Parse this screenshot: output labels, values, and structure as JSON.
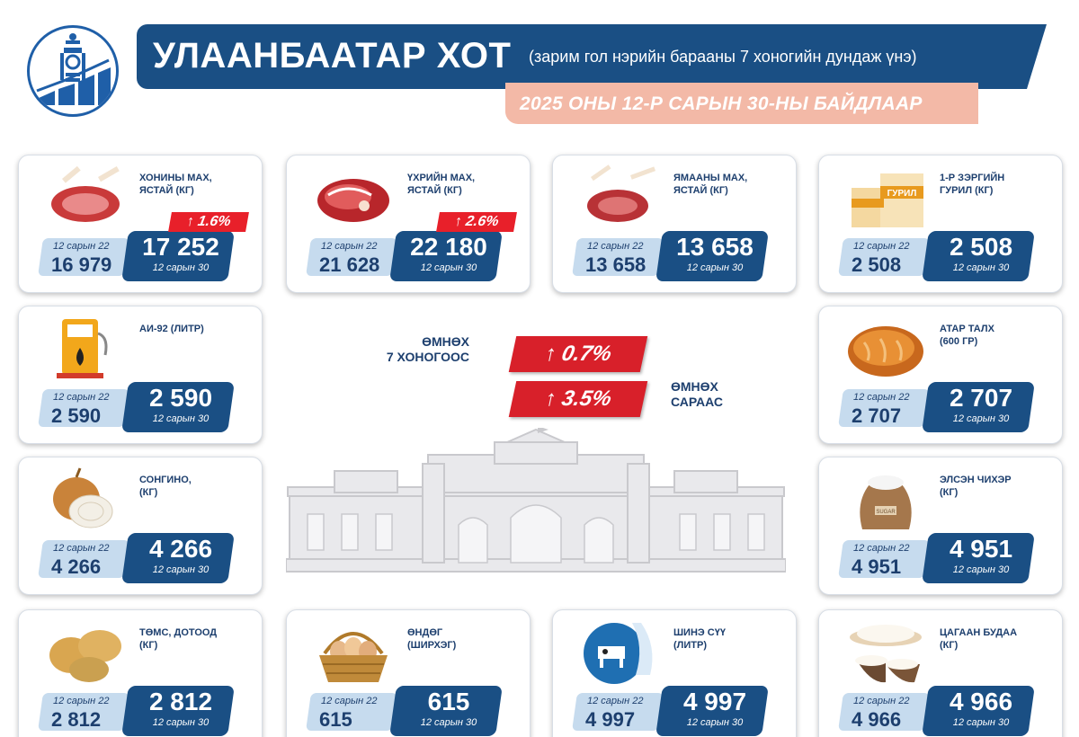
{
  "header": {
    "title": "УЛААНБААТАР ХОТ",
    "subtitle": "(зарим гол нэрийн барааны 7 хоногийн дундаж үнэ)",
    "date": "2025 ОНЫ 12-Р САРЫН 30-НЫ БАЙДЛААР"
  },
  "center": {
    "week_label": "ӨМНӨХ\n7 ХОНОГООС",
    "week_change": "↑ 0.7%",
    "month_label": "ӨМНӨХ\nСАРААС",
    "month_change": "↑ 3.5%"
  },
  "colors": {
    "navy": "#1a4f84",
    "light_blue": "#c6dbee",
    "salmon": "#f3b9a7",
    "red": "#e8202a"
  },
  "items": [
    {
      "name": "ХОНИНЫ МАХ,\nЯСТАЙ (КГ)",
      "prev_label": "12 сарын 22",
      "prev": "16 979",
      "curr": "17 252",
      "curr_label": "12 сарын 30",
      "change": "↑ 1.6%",
      "icon": "mutton-icon"
    },
    {
      "name": "ҮХРИЙН МАХ,\nЯСТАЙ (КГ)",
      "prev_label": "12 сарын 22",
      "prev": "21 628",
      "curr": "22 180",
      "curr_label": "12 сарын 30",
      "change": "↑ 2.6%",
      "icon": "beef-icon"
    },
    {
      "name": "ЯМААНЫ МАХ,\nЯСТАЙ (КГ)",
      "prev_label": "12 сарын 22",
      "prev": "13 658",
      "curr": "13 658",
      "curr_label": "12 сарын 30",
      "icon": "goat-meat-icon"
    },
    {
      "name": "1-Р ЗЭРГИЙН\nГУРИЛ (КГ)",
      "prev_label": "12 сарын 22",
      "prev": "2 508",
      "curr": "2 508",
      "curr_label": "12 сарын 30",
      "icon": "flour-icon",
      "brand": "ГУРИЛ"
    },
    {
      "name": "АИ-92 (ЛИТР)",
      "prev_label": "12 сарын 22",
      "prev": "2 590",
      "curr": "2 590",
      "curr_label": "12 сарын 30",
      "icon": "fuel-pump-icon"
    },
    {
      "name": "АТАР ТАЛХ\n (600 ГР)",
      "prev_label": "12 сарын 22",
      "prev": "2 707",
      "curr": "2 707",
      "curr_label": "12 сарын 30",
      "icon": "bread-icon"
    },
    {
      "name": "СОНГИНО,\n(КГ)",
      "prev_label": "12 сарын 22",
      "prev": "4 266",
      "curr": "4 266",
      "curr_label": "12 сарын 30",
      "icon": "onion-icon"
    },
    {
      "name": "ЭЛСЭН ЧИХЭР\n(КГ)",
      "prev_label": "12 сарын 22",
      "prev": "4 951",
      "curr": "4 951",
      "curr_label": "12 сарын 30",
      "icon": "sugar-sack-icon",
      "brand": "SUGAR"
    },
    {
      "name": "ТӨМС, ДОТООД\n(КГ)",
      "prev_label": "12 сарын 22",
      "prev": "2 812",
      "curr": "2 812",
      "curr_label": "12 сарын 30",
      "icon": "potato-icon"
    },
    {
      "name": "ӨНДӨГ\n(ШИРХЭГ)",
      "prev_label": "12 сарын 22",
      "prev": "615",
      "curr": "615",
      "curr_label": "12 сарын 30",
      "icon": "eggs-basket-icon"
    },
    {
      "name": "ШИНЭ СҮҮ\n(ЛИТР)",
      "prev_label": "12 сарын 22",
      "prev": "4 997",
      "curr": "4 997",
      "curr_label": "12 сарын 30",
      "icon": "milk-icon"
    },
    {
      "name": "ЦАГААН БУДАА\n(КГ)",
      "prev_label": "12 сарын 22",
      "prev": "4 966",
      "curr": "4 966",
      "curr_label": "12 сарын 30",
      "icon": "rice-icon"
    }
  ]
}
